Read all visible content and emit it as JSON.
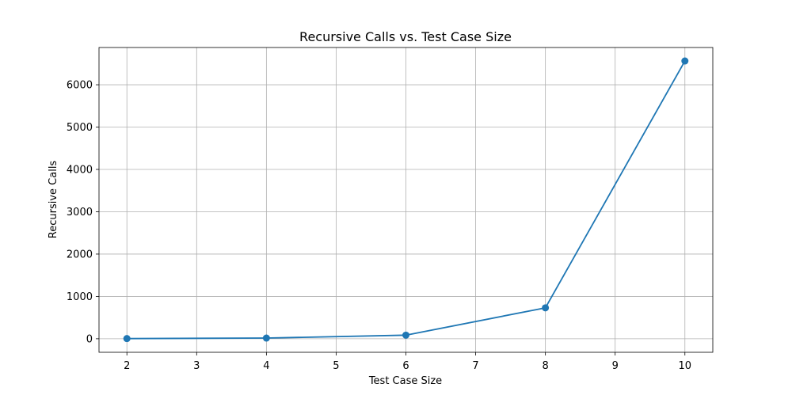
{
  "chart_data": {
    "type": "line",
    "title": "Recursive Calls vs. Test Case Size",
    "xlabel": "Test Case Size",
    "ylabel": "Recursive Calls",
    "xlim": [
      1.6,
      10.4
    ],
    "ylim": [
      -320,
      6880
    ],
    "xticks": [
      2,
      3,
      4,
      5,
      6,
      7,
      8,
      9,
      10
    ],
    "yticks": [
      0,
      1000,
      2000,
      3000,
      4000,
      5000,
      6000
    ],
    "grid": true,
    "marker": "circle",
    "series": [
      {
        "x": [
          2,
          4,
          6,
          8,
          10
        ],
        "values": [
          4,
          16,
          85,
          730,
          6561
        ],
        "color": "#1f77b4"
      }
    ]
  }
}
